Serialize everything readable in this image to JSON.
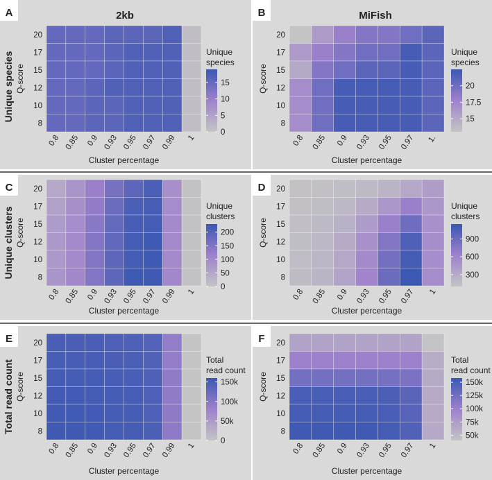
{
  "headers": {
    "col1": "2kb",
    "col2": "MiFish"
  },
  "row_labels": [
    "Unique species",
    "Unique clusters",
    "Total read count"
  ],
  "colors": {
    "low": "#c4c4c4",
    "mid": "#9f81cc",
    "high": "#3b58b2",
    "divider": "#333333",
    "panel_bg": "#d9d9d9"
  },
  "chart_data": [
    {
      "panel": "A",
      "type": "heatmap",
      "xlabel": "Cluster percentage",
      "ylabel": "Q-score",
      "x": [
        "0.8",
        "0.85",
        "0.9",
        "0.93",
        "0.95",
        "0.97",
        "0.99",
        "1"
      ],
      "y": [
        "20",
        "17",
        "15",
        "12",
        "10",
        "8"
      ],
      "legend_title": [
        "Unique",
        "species"
      ],
      "legend_ticks": [
        "15",
        "10",
        "5",
        "0"
      ],
      "range": [
        0,
        19
      ],
      "legend_ticks_values": [
        15,
        10,
        5,
        0
      ],
      "values": [
        [
          15,
          15,
          15,
          16,
          16,
          16,
          17,
          1
        ],
        [
          15,
          15,
          15,
          16,
          17,
          17,
          17,
          1
        ],
        [
          15,
          15,
          15,
          16,
          17,
          17,
          17,
          1
        ],
        [
          15,
          15,
          16,
          17,
          17,
          17,
          17,
          1
        ],
        [
          15,
          15,
          16,
          16,
          17,
          17,
          17,
          1
        ],
        [
          15,
          15,
          16,
          16,
          17,
          17,
          17,
          1
        ]
      ]
    },
    {
      "panel": "B",
      "type": "heatmap",
      "xlabel": "Cluster percentage",
      "ylabel": "Q-score",
      "x": [
        "0.8",
        "0.85",
        "0.9",
        "0.93",
        "0.95",
        "0.97",
        "1."
      ],
      "y": [
        "20",
        "17",
        "15",
        "12",
        "10",
        "8"
      ],
      "legend_title": [
        "Unique",
        "species"
      ],
      "legend_ticks": [
        "20",
        "17.5",
        "15"
      ],
      "range": [
        13,
        22.5
      ],
      "legend_ticks_values": [
        20,
        17.5,
        15
      ],
      "values": [
        [
          13,
          16,
          18,
          19,
          19,
          20,
          21
        ],
        [
          16,
          18,
          19,
          20,
          20,
          22,
          21
        ],
        [
          15,
          19,
          20,
          21,
          21,
          22,
          21
        ],
        [
          17,
          20,
          22,
          22,
          22,
          22,
          21
        ],
        [
          17,
          20,
          22,
          22,
          22,
          22,
          21
        ],
        [
          17,
          20,
          22,
          22,
          22,
          22,
          21
        ]
      ]
    },
    {
      "panel": "C",
      "type": "heatmap",
      "xlabel": "Cluster percentage",
      "ylabel": "Q-score",
      "x": [
        "0.8",
        "0.85",
        "0.9",
        "0.93",
        "0.95",
        "0.97",
        "0.99",
        "1"
      ],
      "y": [
        "20",
        "17",
        "15",
        "12",
        "10",
        "8"
      ],
      "legend_title": [
        "Unique",
        "clusters"
      ],
      "legend_ticks": [
        "200",
        "150",
        "100",
        "50",
        "0"
      ],
      "range": [
        0,
        230
      ],
      "legend_ticks_values": [
        200,
        150,
        100,
        50,
        0
      ],
      "values": [
        [
          50,
          80,
          120,
          160,
          190,
          210,
          90,
          5
        ],
        [
          60,
          90,
          130,
          175,
          210,
          215,
          95,
          5
        ],
        [
          70,
          95,
          140,
          180,
          215,
          220,
          100,
          5
        ],
        [
          75,
          100,
          145,
          185,
          220,
          225,
          100,
          5
        ],
        [
          75,
          100,
          150,
          190,
          220,
          225,
          100,
          5
        ],
        [
          80,
          105,
          150,
          190,
          225,
          225,
          105,
          5
        ]
      ]
    },
    {
      "panel": "D",
      "type": "heatmap",
      "xlabel": "Cluster percentage",
      "ylabel": "Q-score",
      "x": [
        "0.8",
        "0.85",
        "0.9",
        "0.93",
        "0.95",
        "0.97",
        "1"
      ],
      "y": [
        "20",
        "17",
        "15",
        "12",
        "10",
        "8"
      ],
      "legend_title": [
        "Unique",
        "clusters"
      ],
      "legend_ticks": [
        "900",
        "600",
        "300"
      ],
      "range": [
        100,
        1150
      ],
      "legend_ticks_values": [
        900,
        600,
        300
      ],
      "values": [
        [
          120,
          130,
          150,
          180,
          230,
          330,
          410
        ],
        [
          130,
          150,
          200,
          300,
          450,
          650,
          450
        ],
        [
          140,
          180,
          250,
          420,
          650,
          880,
          500
        ],
        [
          150,
          200,
          300,
          500,
          780,
          1050,
          520
        ],
        [
          160,
          220,
          330,
          560,
          850,
          1100,
          530
        ],
        [
          170,
          230,
          350,
          600,
          900,
          1150,
          540
        ]
      ]
    },
    {
      "panel": "E",
      "type": "heatmap",
      "xlabel": "Cluster percentage",
      "ylabel": "Q-score",
      "x": [
        "0.8",
        "0.85",
        "0.9",
        "0.93",
        "0.95",
        "0.97",
        "0.99",
        "1"
      ],
      "y": [
        "20",
        "17",
        "15",
        "12",
        "10",
        "8"
      ],
      "legend_title": [
        "Total",
        "read count"
      ],
      "legend_ticks": [
        "150k",
        "100k",
        "50k",
        "0"
      ],
      "range": [
        0,
        160000
      ],
      "legend_ticks_values": [
        150000,
        100000,
        50000,
        0
      ],
      "values": [
        [
          148000,
          148000,
          148000,
          146000,
          145000,
          140000,
          90000,
          0
        ],
        [
          150000,
          150000,
          150000,
          148000,
          147000,
          142000,
          90000,
          0
        ],
        [
          152000,
          152000,
          152000,
          150000,
          149000,
          144000,
          92000,
          0
        ],
        [
          154000,
          154000,
          153000,
          151000,
          150000,
          145000,
          92000,
          0
        ],
        [
          155000,
          155000,
          154000,
          152000,
          151000,
          146000,
          93000,
          0
        ],
        [
          156000,
          156000,
          155000,
          153000,
          152000,
          147000,
          93000,
          0
        ]
      ]
    },
    {
      "panel": "F",
      "type": "heatmap",
      "xlabel": "Cluster percentage",
      "ylabel": "Q-score",
      "x": [
        "0.8",
        "0.85",
        "0.9",
        "0.93",
        "0.95",
        "0.97",
        "1"
      ],
      "y": [
        "20",
        "17",
        "15",
        "12",
        "10",
        "8"
      ],
      "legend_title": [
        "Total",
        "read count"
      ],
      "legend_ticks": [
        "150k",
        "125k",
        "100k",
        "75k",
        "50k"
      ],
      "range": [
        40000,
        158000
      ],
      "legend_ticks_values": [
        150000,
        125000,
        100000,
        75000,
        50000
      ],
      "values": [
        [
          70000,
          70000,
          70000,
          70000,
          70000,
          70000,
          42000
        ],
        [
          100000,
          100000,
          100000,
          100000,
          100000,
          100000,
          60000
        ],
        [
          125000,
          125000,
          125000,
          125000,
          124000,
          120000,
          62000
        ],
        [
          150000,
          150000,
          150000,
          150000,
          148000,
          140000,
          63000
        ],
        [
          152000,
          152000,
          152000,
          152000,
          150000,
          142000,
          63000
        ],
        [
          155000,
          155000,
          155000,
          155000,
          152000,
          145000,
          64000
        ]
      ]
    }
  ]
}
